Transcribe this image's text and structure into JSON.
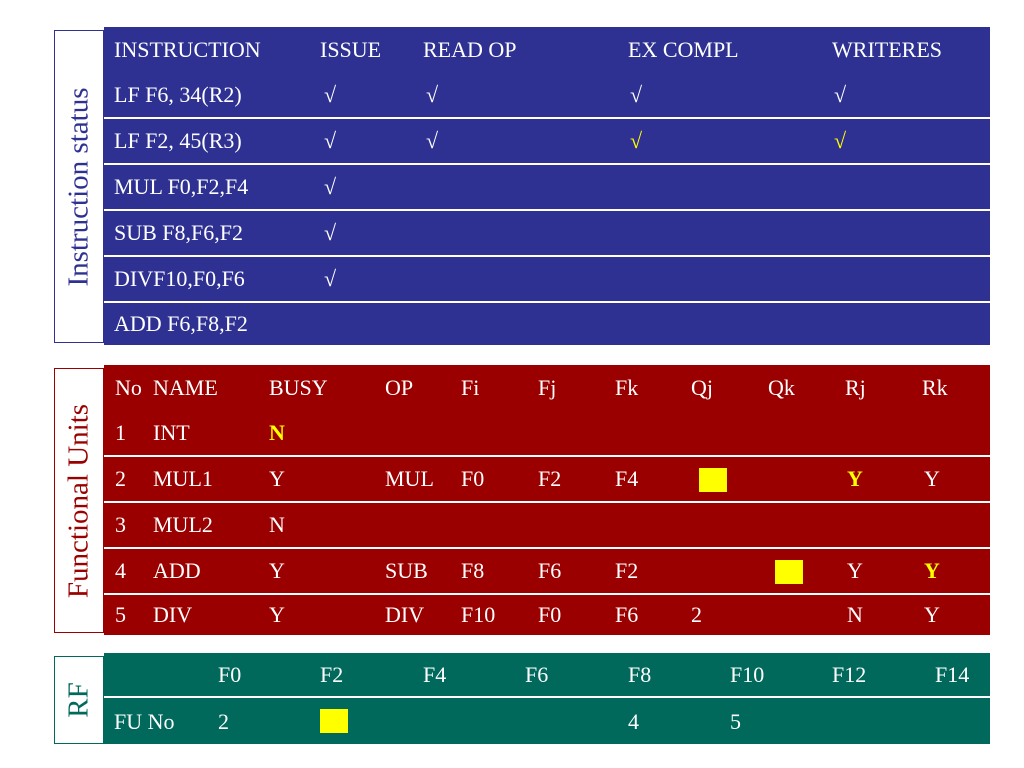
{
  "instruction_status": {
    "side_label": "Instruction status",
    "headers": [
      "INSTRUCTION",
      "ISSUE",
      "READ OP",
      "EX COMPL",
      "WRITERES"
    ],
    "rows": [
      {
        "instruction": "LF F6, 34(R2)",
        "issue": "√",
        "read_op": "√",
        "ex_compl": "√",
        "writeres": "√"
      },
      {
        "instruction": "LF F2, 45(R3)",
        "issue": "√",
        "read_op": "√",
        "ex_compl": "√",
        "writeres": "√"
      },
      {
        "instruction": "MUL F0,F2,F4",
        "issue": "√",
        "read_op": "",
        "ex_compl": "",
        "writeres": ""
      },
      {
        "instruction": "SUB F8,F6,F2",
        "issue": "√",
        "read_op": "",
        "ex_compl": "",
        "writeres": ""
      },
      {
        "instruction": "DIVF10,F0,F6",
        "issue": "√",
        "read_op": "",
        "ex_compl": "",
        "writeres": ""
      },
      {
        "instruction": "ADD F6,F8,F2",
        "issue": "",
        "read_op": "",
        "ex_compl": "",
        "writeres": ""
      }
    ]
  },
  "functional_units": {
    "side_label": "Functional Units",
    "headers": [
      "No",
      "NAME",
      "BUSY",
      "OP",
      "Fi",
      "Fj",
      "Fk",
      "Qj",
      "Qk",
      "Rj",
      "Rk"
    ],
    "rows": [
      {
        "no": "1",
        "name": "INT",
        "busy": "N",
        "op": "",
        "fi": "",
        "fj": "",
        "fk": "",
        "qj": "",
        "qk": "",
        "rj": "",
        "rk": ""
      },
      {
        "no": "2",
        "name": "MUL1",
        "busy": "Y",
        "op": "MUL",
        "fi": "F0",
        "fj": "F2",
        "fk": "F4",
        "qj": "",
        "qk": "",
        "rj": "Y",
        "rk": "Y"
      },
      {
        "no": "3",
        "name": "MUL2",
        "busy": "N",
        "op": "",
        "fi": "",
        "fj": "",
        "fk": "",
        "qj": "",
        "qk": "",
        "rj": "",
        "rk": ""
      },
      {
        "no": "4",
        "name": "ADD",
        "busy": "Y",
        "op": "SUB",
        "fi": "F8",
        "fj": "F6",
        "fk": "F2",
        "qj": "",
        "qk": "",
        "rj": "Y",
        "rk": "Y"
      },
      {
        "no": "5",
        "name": "DIV",
        "busy": "Y",
        "op": "DIV",
        "fi": "F10",
        "fj": "F0",
        "fk": "F6",
        "qj": "2",
        "qk": "",
        "rj": "N",
        "rk": "Y"
      }
    ]
  },
  "register_file": {
    "side_label": "RF",
    "registers": [
      "F0",
      "F2",
      "F4",
      "F6",
      "F8",
      "F10",
      "F12",
      "F14"
    ],
    "row_label": "FU No",
    "fu_no": [
      "2",
      "",
      "",
      "",
      "4",
      "5",
      "",
      ""
    ]
  },
  "colors": {
    "instruction_bg": "#2e3192",
    "functional_bg": "#9b0000",
    "rf_bg": "#00695c",
    "highlight": "#ffff00"
  }
}
